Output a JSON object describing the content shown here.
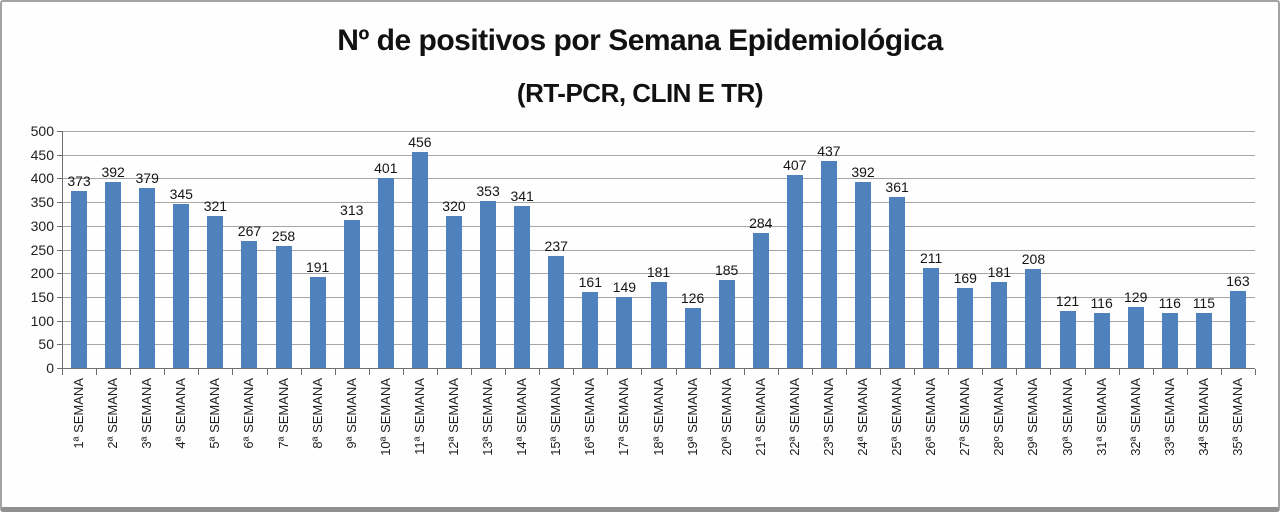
{
  "frame": {
    "background": "#fefefe",
    "border_color": "#a3a3a3"
  },
  "chart_data": {
    "type": "bar",
    "title": "Nº de positivos por Semana Epidemiológica",
    "subtitle": "(RT-PCR, CLIN E TR)",
    "categories": [
      "1ª SEMANA",
      "2ª SEMANA",
      "3ª SEMANA",
      "4ª SEMANA",
      "5ª SEMANA",
      "6ª SEMANA",
      "7ª SEMANA",
      "8ª SEMANA",
      "9ª SEMANA",
      "10ª SEMANA",
      "11ª SEMANA",
      "12ª SEMANA",
      "13ª SEMANA",
      "14ª SEMANA",
      "15ª SEMANA",
      "16ª SEMANA",
      "17ª SEMANA",
      "18ª SEMANA",
      "19ª SEMANA",
      "20ª SEMANA",
      "21ª SEMANA",
      "22ª SEMANA",
      "23ª SEMANA",
      "24ª SEMANA",
      "25ª SEMANA",
      "26ª SEMANA",
      "27ª SEMANA",
      "28º SEMANA",
      "29ª SEMANA",
      "30ª SEMANA",
      "31ª SEMANA",
      "32ª SEMANA",
      "33ª SEMANA",
      "34ª SEMANA",
      "35ª SEMANA"
    ],
    "values": [
      373,
      392,
      379,
      345,
      321,
      267,
      258,
      191,
      313,
      401,
      456,
      320,
      353,
      341,
      237,
      161,
      149,
      181,
      126,
      185,
      284,
      407,
      437,
      392,
      361,
      211,
      169,
      181,
      208,
      121,
      116,
      129,
      116,
      115,
      163
    ],
    "data_labels": true,
    "xlabel": "",
    "ylabel": "",
    "ylim": [
      0,
      500
    ],
    "ytick_step": 50,
    "yticks": [
      0,
      50,
      100,
      150,
      200,
      250,
      300,
      350,
      400,
      450,
      500
    ],
    "grid": true,
    "legend": "none",
    "bar_color": "#4f81bd",
    "gridline_color": "#a6a6a6",
    "axis_color": "#6e6e6e"
  }
}
